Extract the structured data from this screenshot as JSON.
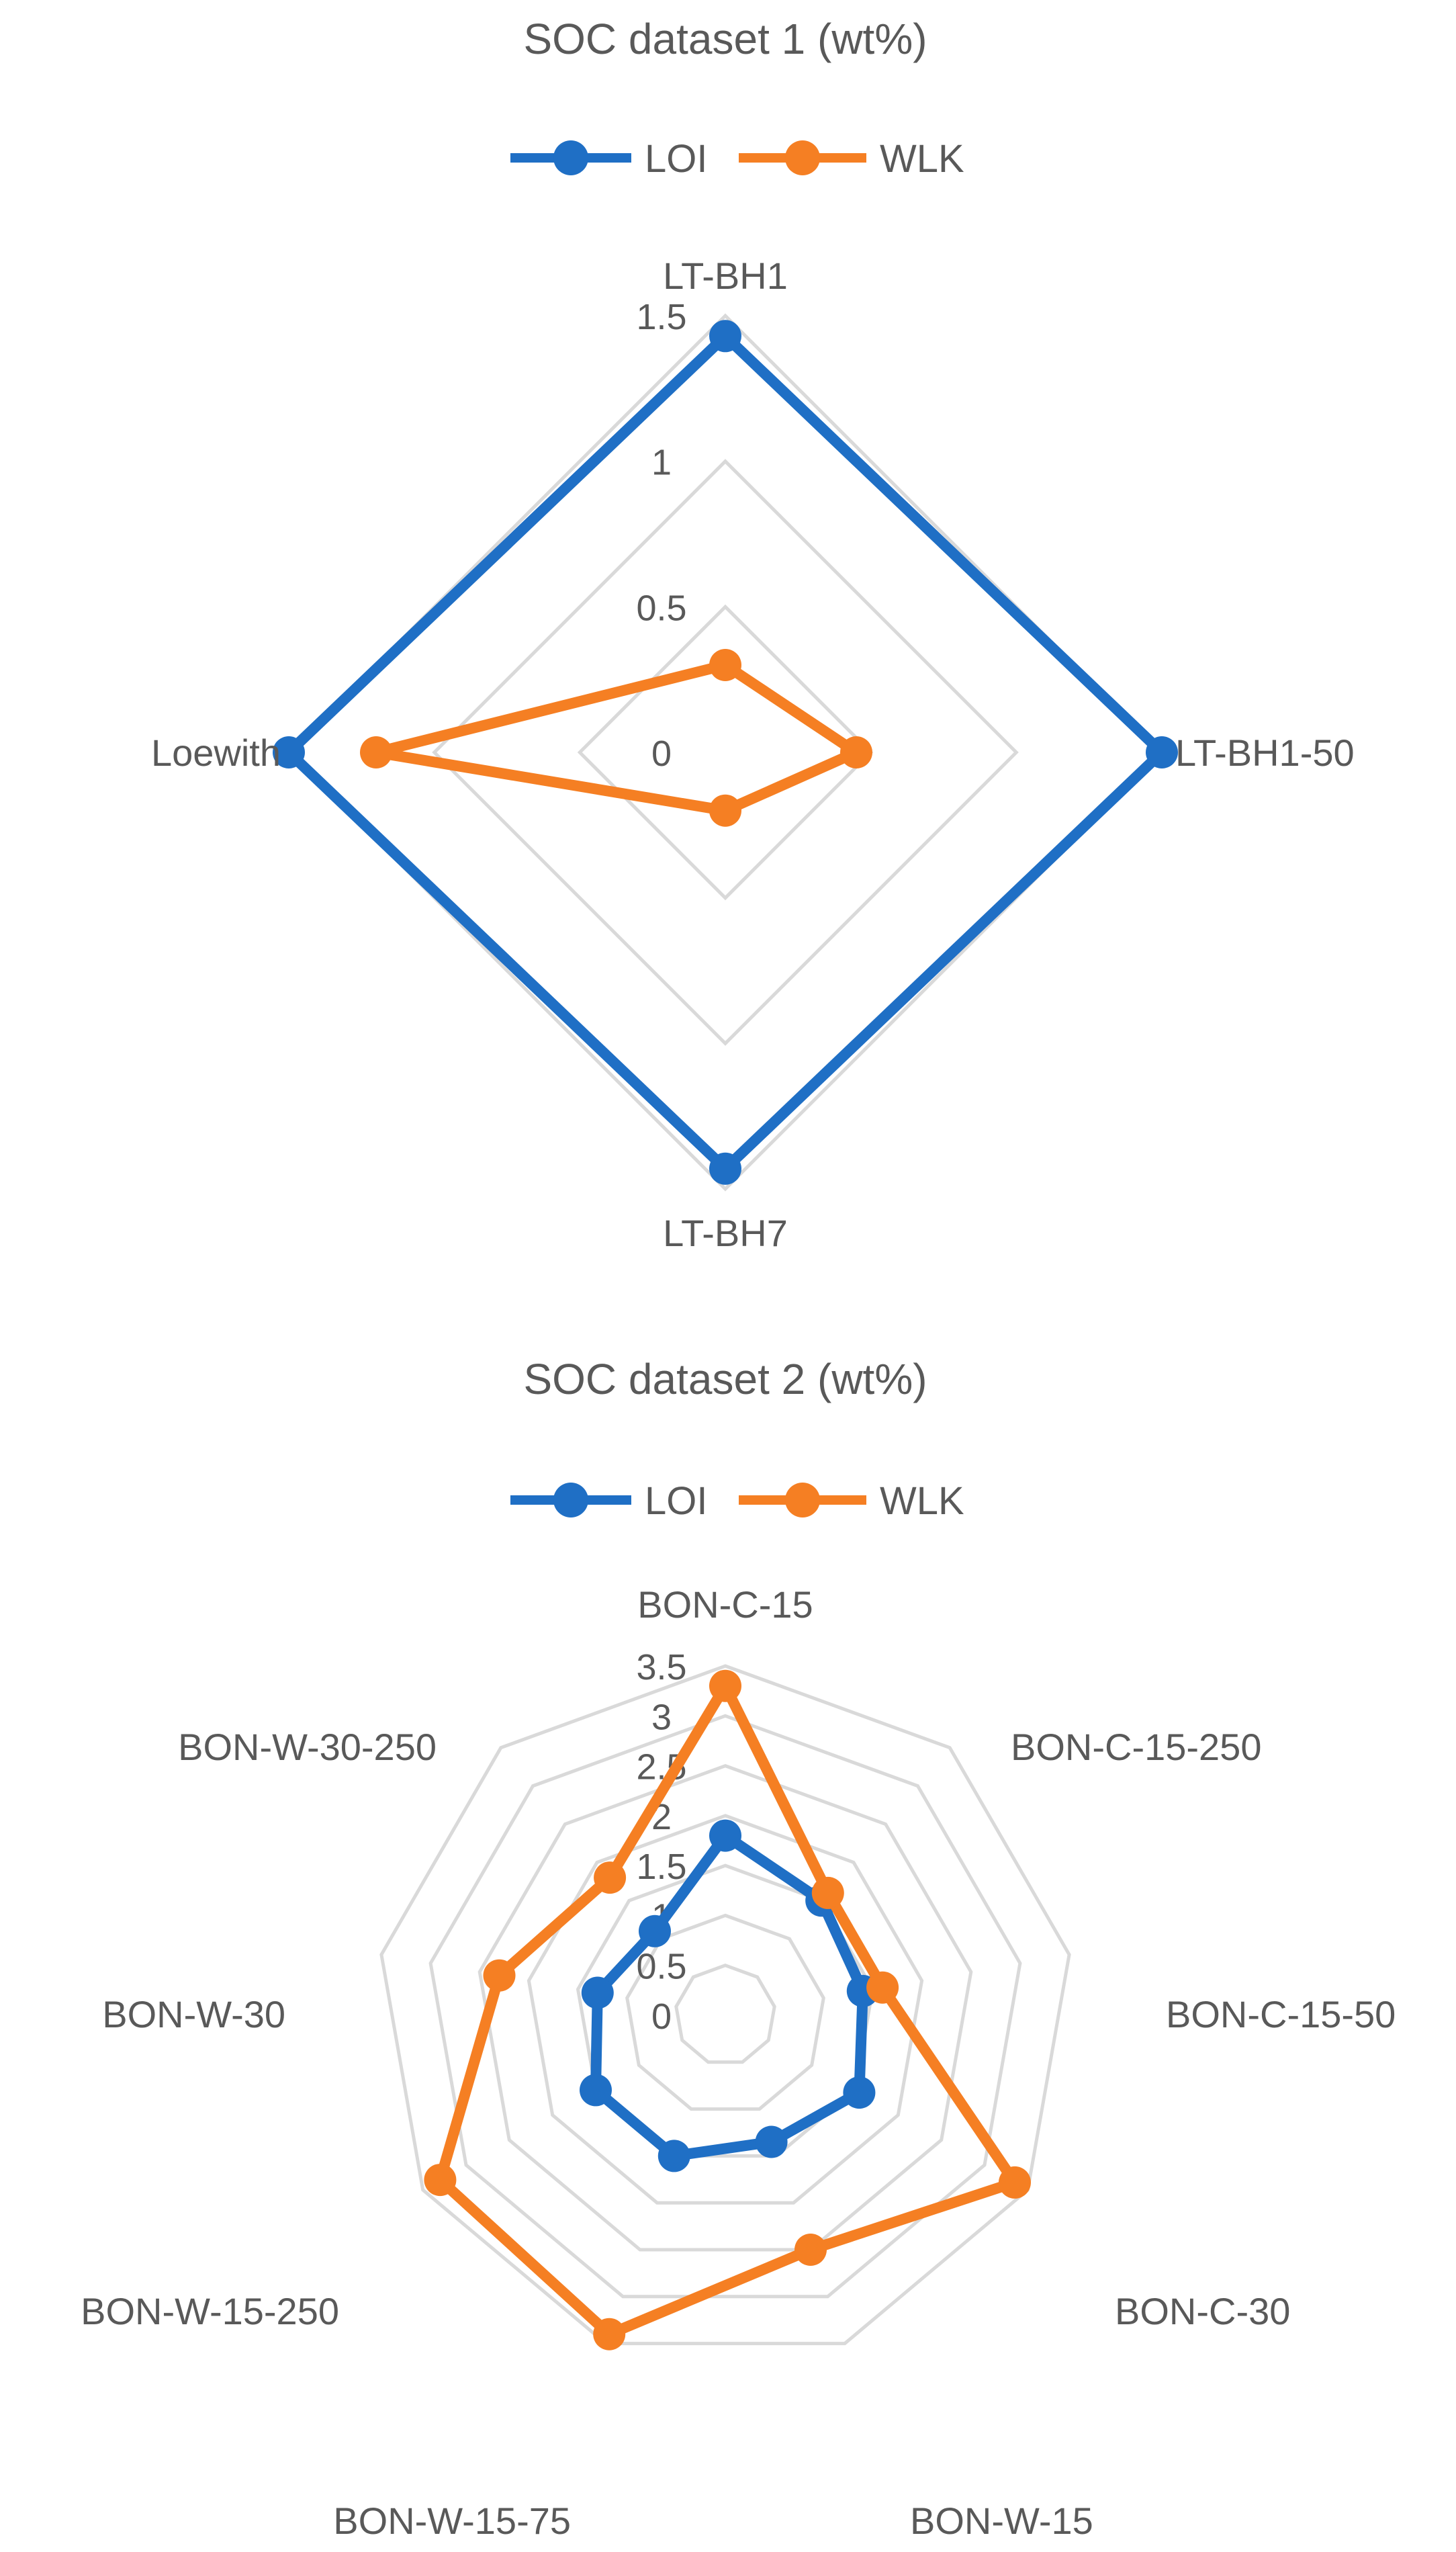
{
  "chart_data": [
    {
      "type": "radar",
      "title": "SOC dataset 1 (wt%)",
      "categories": [
        "LT-BH1",
        "LT-BH1-50",
        "LT-BH7",
        "Loewith"
      ],
      "rlim": [
        0,
        1.5
      ],
      "ticks": [
        "0",
        "0.5",
        "1",
        "1.5"
      ],
      "tick_values": [
        0,
        0.5,
        1,
        1.5
      ],
      "grid": true,
      "legend_position": "top",
      "series": [
        {
          "name": "LOI",
          "color": "#1f6fc5",
          "values": [
            1.43,
            1.5,
            1.43,
            1.5
          ]
        },
        {
          "name": "WLK",
          "color": "#f57f23",
          "values": [
            0.3,
            0.45,
            0.2,
            1.2
          ]
        }
      ]
    },
    {
      "type": "radar",
      "title": "SOC dataset 2 (wt%)",
      "categories": [
        "BON-C-15",
        "BON-C-15-250",
        "BON-C-15-50",
        "BON-C-30",
        "BON-W-15",
        "BON-W-15-75",
        "BON-W-15-250",
        "BON-W-30",
        "BON-W-30-250"
      ],
      "rlim": [
        0,
        3.5
      ],
      "ticks": [
        "0",
        "0.5",
        "1",
        "1.5",
        "2",
        "2.5",
        "3",
        "3.5"
      ],
      "tick_values": [
        0,
        0.5,
        1,
        1.5,
        2,
        2.5,
        3,
        3.5
      ],
      "grid": true,
      "legend_position": "top",
      "series": [
        {
          "name": "LOI",
          "color": "#1f6fc5",
          "values": [
            1.8,
            1.5,
            1.4,
            1.55,
            1.35,
            1.5,
            1.5,
            1.3,
            1.1
          ]
        },
        {
          "name": "WLK",
          "color": "#f57f23",
          "values": [
            3.3,
            1.6,
            1.6,
            3.35,
            2.5,
            3.4,
            3.3,
            2.3,
            1.8
          ]
        }
      ]
    }
  ]
}
